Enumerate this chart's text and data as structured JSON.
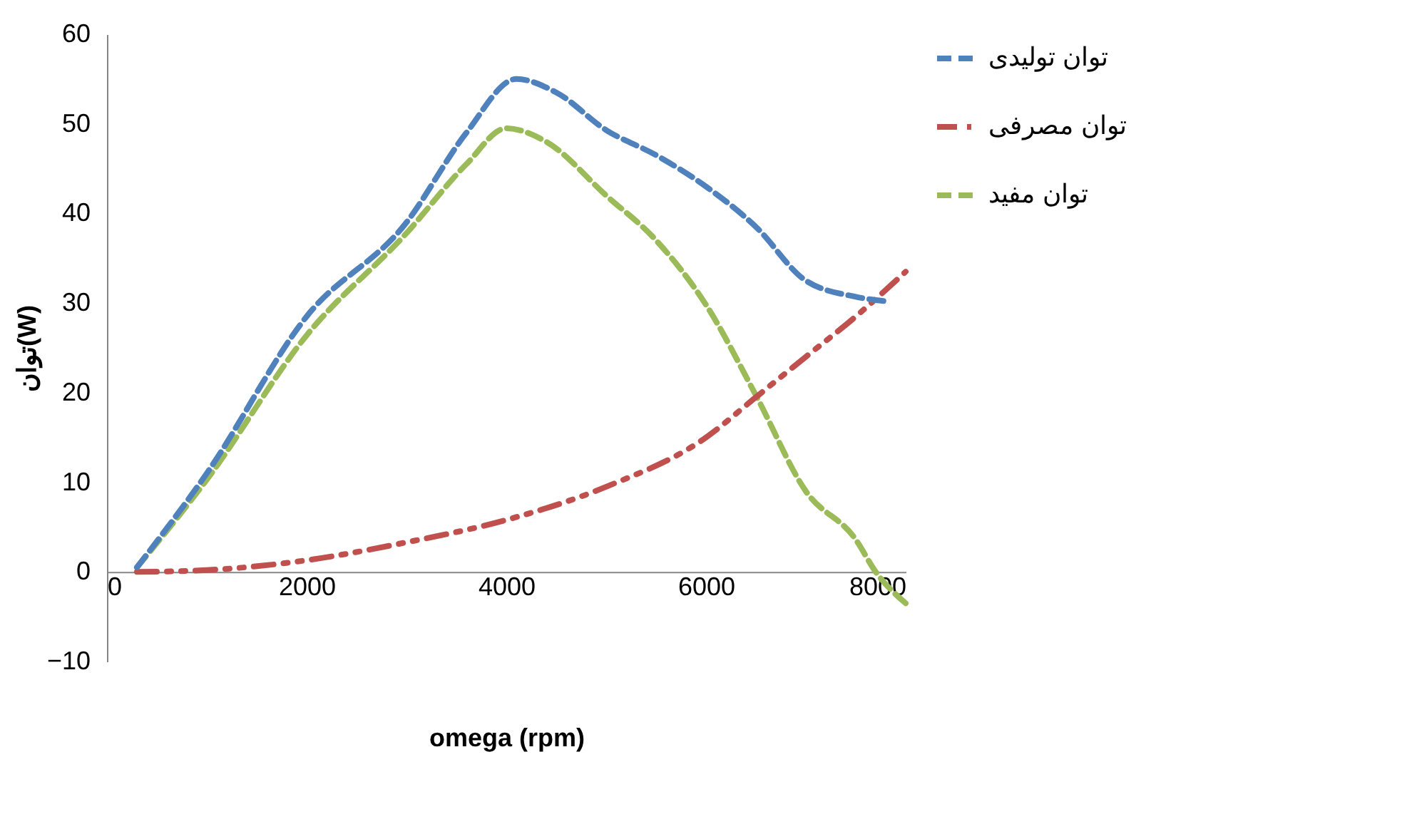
{
  "chart_data": {
    "type": "line",
    "xlabel": "omega (rpm)",
    "ylabel": "توان(W)",
    "xlim": [
      0,
      8000
    ],
    "xticks": [
      0,
      2000,
      4000,
      6000,
      8000
    ],
    "ylim": [
      -10,
      60
    ],
    "yticks": [
      -10,
      0,
      10,
      20,
      30,
      40,
      50,
      60
    ],
    "grid": false,
    "legend": "right",
    "marker": "none",
    "series": [
      {
        "name": "توان تولیدی",
        "color": "#4f81bd",
        "line_style": "dashed",
        "x": [
          300,
          1000,
          2000,
          3000,
          3600,
          4100,
          4500,
          5000,
          5500,
          6000,
          6500,
          7000,
          7500,
          7800
        ],
        "values": [
          0.5,
          11,
          28.5,
          39,
          49,
          55,
          53.5,
          49.3,
          46.5,
          43,
          38.5,
          32.5,
          30.7,
          30.2
        ]
      },
      {
        "name": "توان مصرفی",
        "color": "#c0504d",
        "line_style": "dotted",
        "x": [
          300,
          1000,
          2000,
          3000,
          4000,
          5000,
          6000,
          6500,
          7000,
          7500,
          8000
        ],
        "values": [
          0,
          0.2,
          1.3,
          3.3,
          5.8,
          9.5,
          15,
          19.5,
          24,
          28.5,
          33.5
        ]
      },
      {
        "name": "توان مفید",
        "color": "#9bbb59",
        "line_style": "dashed",
        "x": [
          300,
          1000,
          2000,
          3000,
          3600,
          4000,
          4400,
          5000,
          5500,
          6000,
          6500,
          7000,
          7500,
          7700,
          8000
        ],
        "values": [
          0.5,
          10.3,
          26.4,
          37.8,
          45.5,
          49.5,
          48,
          42,
          37,
          29.8,
          19.7,
          9,
          3.6,
          0,
          -3.5
        ]
      }
    ]
  }
}
